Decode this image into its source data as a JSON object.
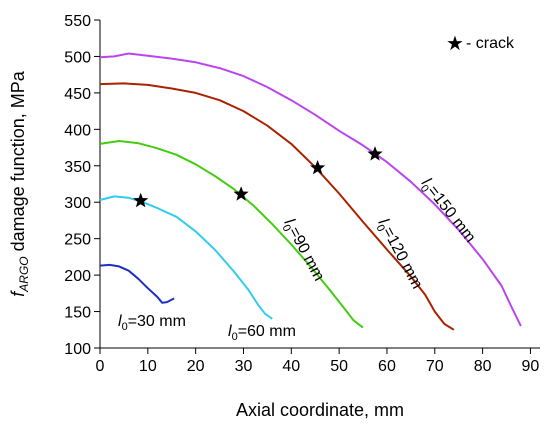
{
  "chart_data": {
    "type": "line",
    "xlabel": "Axial coordinate, mm",
    "ylabel_prefix": "f",
    "ylabel_sub": "ARGO",
    "ylabel_rest": " damage function, MPa",
    "xlim": [
      0,
      92
    ],
    "ylim": [
      100,
      550
    ],
    "xticks": [
      0,
      10,
      20,
      30,
      40,
      50,
      60,
      70,
      80,
      90
    ],
    "yticks": [
      100,
      150,
      200,
      250,
      300,
      350,
      400,
      450,
      500,
      550
    ],
    "grid": false,
    "legend": {
      "symbol": "★",
      "text": " - crack",
      "position": "top-right"
    },
    "series": [
      {
        "label_prefix": "l",
        "label_sub": "0",
        "label_rest": "=30 mm",
        "color": "#1f2fbf",
        "points": [
          [
            0,
            213
          ],
          [
            2,
            214
          ],
          [
            4,
            212
          ],
          [
            6,
            206
          ],
          [
            8,
            195
          ],
          [
            10,
            182
          ],
          [
            12,
            170
          ],
          [
            13,
            162
          ],
          [
            14,
            163
          ],
          [
            15.5,
            168
          ]
        ]
      },
      {
        "label_prefix": "l",
        "label_sub": "0",
        "label_rest": "=60 mm",
        "color": "#33ccee",
        "points": [
          [
            0,
            303
          ],
          [
            3,
            308
          ],
          [
            6,
            306
          ],
          [
            9,
            300
          ],
          [
            12,
            292
          ],
          [
            16,
            280
          ],
          [
            20,
            260
          ],
          [
            24,
            235
          ],
          [
            28,
            205
          ],
          [
            31,
            180
          ],
          [
            33,
            160
          ],
          [
            34.5,
            147
          ],
          [
            36,
            140
          ]
        ]
      },
      {
        "label_prefix": "l",
        "label_sub": "0",
        "label_rest": "=90 mm",
        "color": "#44cc11",
        "points": [
          [
            0,
            380
          ],
          [
            4,
            384
          ],
          [
            8,
            381
          ],
          [
            12,
            374
          ],
          [
            16,
            365
          ],
          [
            20,
            352
          ],
          [
            24,
            336
          ],
          [
            28,
            318
          ],
          [
            32,
            296
          ],
          [
            36,
            270
          ],
          [
            40,
            242
          ],
          [
            44,
            212
          ],
          [
            48,
            180
          ],
          [
            51,
            155
          ],
          [
            53,
            138
          ],
          [
            55,
            128
          ]
        ]
      },
      {
        "label_prefix": "l",
        "label_sub": "0",
        "label_rest": "=120 mm",
        "color": "#aa2200",
        "points": [
          [
            0,
            462
          ],
          [
            5,
            463
          ],
          [
            10,
            461
          ],
          [
            15,
            456
          ],
          [
            20,
            450
          ],
          [
            25,
            440
          ],
          [
            30,
            425
          ],
          [
            35,
            405
          ],
          [
            40,
            380
          ],
          [
            45,
            348
          ],
          [
            50,
            312
          ],
          [
            55,
            273
          ],
          [
            60,
            235
          ],
          [
            65,
            198
          ],
          [
            68,
            173
          ],
          [
            70,
            150
          ],
          [
            72,
            133
          ],
          [
            74,
            125
          ]
        ]
      },
      {
        "label_prefix": "l",
        "label_sub": "0",
        "label_rest": "=150 mm",
        "color": "#bb44ee",
        "points": [
          [
            0,
            499
          ],
          [
            3,
            500
          ],
          [
            6,
            504
          ],
          [
            10,
            501
          ],
          [
            15,
            497
          ],
          [
            20,
            492
          ],
          [
            25,
            484
          ],
          [
            30,
            473
          ],
          [
            35,
            458
          ],
          [
            40,
            440
          ],
          [
            45,
            420
          ],
          [
            50,
            398
          ],
          [
            55,
            378
          ],
          [
            60,
            355
          ],
          [
            65,
            328
          ],
          [
            70,
            297
          ],
          [
            75,
            262
          ],
          [
            80,
            222
          ],
          [
            84,
            185
          ],
          [
            86,
            157
          ],
          [
            88,
            130
          ]
        ]
      }
    ],
    "crack_markers": [
      [
        8.5,
        302
      ],
      [
        29.5,
        311
      ],
      [
        45.5,
        347
      ],
      [
        57.5,
        366
      ]
    ]
  }
}
